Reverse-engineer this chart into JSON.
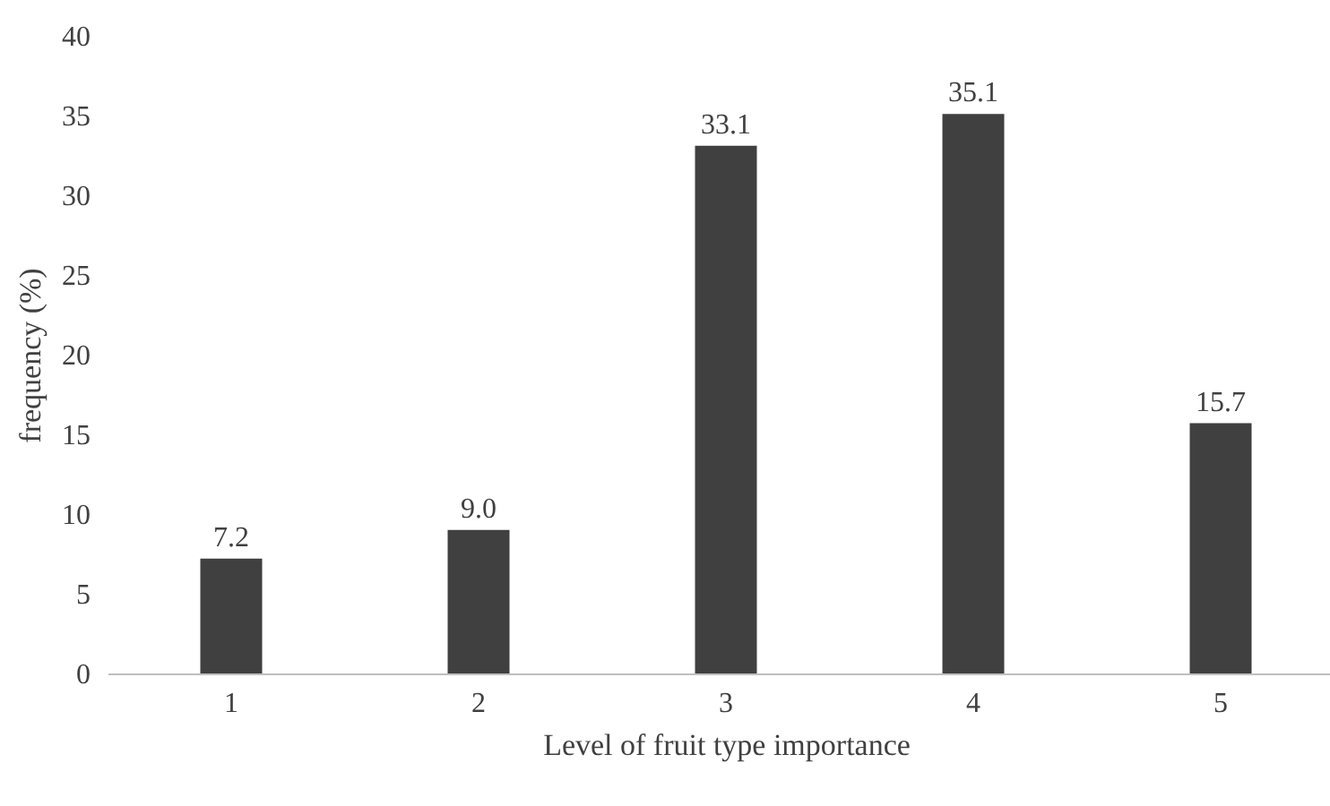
{
  "chart_data": {
    "type": "bar",
    "xlabel": "Level of fruit type importance",
    "ylabel": "frequency (%)",
    "categories": [
      "1",
      "2",
      "3",
      "4",
      "5"
    ],
    "values": [
      7.2,
      9.0,
      33.1,
      35.1,
      15.7
    ],
    "value_labels": [
      "7.2",
      "9.0",
      "33.1",
      "35.1",
      "15.7"
    ],
    "color": "#404040",
    "ylim": [
      0,
      40
    ],
    "yticks": [
      0,
      5,
      10,
      15,
      20,
      25,
      30,
      35,
      40
    ],
    "grid": false
  }
}
